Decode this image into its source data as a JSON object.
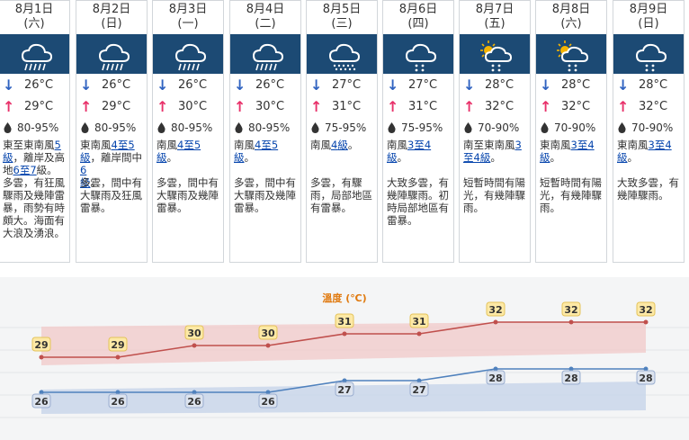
{
  "days": [
    {
      "date": "8月1日",
      "weekday": "(六)",
      "icon": "heavy-rain-icon",
      "low": "26°C",
      "high": "29°C",
      "humidity": "80-95%",
      "wind": [
        {
          "t": "東至東南風"
        },
        {
          "t": "5",
          "u": 1
        },
        {
          "t": "\n"
        },
        {
          "t": "級",
          "u": 1
        },
        {
          "t": "，離岸及高地"
        },
        {
          "t": "6至7",
          "u": 1
        },
        {
          "t": "級。"
        }
      ],
      "desc": "多雲，有狂風驟雨及幾陣雷暴，雨勢有時頗大。海面有大浪及湧浪。"
    },
    {
      "date": "8月2日",
      "weekday": "(日)",
      "icon": "heavy-rain-icon",
      "low": "26°C",
      "high": "29°C",
      "humidity": "80-95%",
      "wind": [
        {
          "t": "東南風"
        },
        {
          "t": "4至5",
          "u": 1
        },
        {
          "t": "\n"
        },
        {
          "t": "級",
          "u": 1
        },
        {
          "t": "，離岸間中"
        },
        {
          "t": "6",
          "u": 1
        },
        {
          "t": "\n"
        },
        {
          "t": "級",
          "u": 1
        },
        {
          "t": "。"
        }
      ],
      "desc": "多雲，間中有大驟雨及狂風雷暴。"
    },
    {
      "date": "8月3日",
      "weekday": "(一)",
      "icon": "heavy-rain-icon",
      "low": "26°C",
      "high": "30°C",
      "humidity": "80-95%",
      "wind": [
        {
          "t": "南風"
        },
        {
          "t": "4至5",
          "u": 1
        },
        {
          "t": "\n"
        },
        {
          "t": "級",
          "u": 1
        },
        {
          "t": "。"
        }
      ],
      "desc": "多雲，間中有大驟雨及幾陣雷暴。"
    },
    {
      "date": "8月4日",
      "weekday": "(二)",
      "icon": "heavy-rain-icon",
      "low": "26°C",
      "high": "30°C",
      "humidity": "80-95%",
      "wind": [
        {
          "t": "南風"
        },
        {
          "t": "4至5",
          "u": 1
        },
        {
          "t": "\n"
        },
        {
          "t": "級",
          "u": 1
        },
        {
          "t": "。"
        }
      ],
      "desc": "多雲，間中有大驟雨及幾陣雷暴。"
    },
    {
      "date": "8月5日",
      "weekday": "(三)",
      "icon": "rain-icon",
      "low": "27°C",
      "high": "31°C",
      "humidity": "75-95%",
      "wind": [
        {
          "t": "南風"
        },
        {
          "t": "4",
          "u": 1
        },
        {
          "t": "級",
          "u": 1
        },
        {
          "t": "。"
        }
      ],
      "desc": "多雲，有驟雨，局部地區有雷暴。"
    },
    {
      "date": "8月6日",
      "weekday": "(四)",
      "icon": "showers-icon",
      "low": "27°C",
      "high": "31°C",
      "humidity": "75-95%",
      "wind": [
        {
          "t": "南風"
        },
        {
          "t": "3至4",
          "u": 1
        },
        {
          "t": "\n"
        },
        {
          "t": "級",
          "u": 1
        },
        {
          "t": "。"
        }
      ],
      "desc": "大致多雲，有幾陣驟雨。初時局部地區有雷暴。"
    },
    {
      "date": "8月7日",
      "weekday": "(五)",
      "icon": "sun-showers-icon",
      "low": "28°C",
      "high": "32°C",
      "humidity": "70-90%",
      "wind": [
        {
          "t": "南至東南風"
        },
        {
          "t": "3",
          "u": 1
        },
        {
          "t": "\n"
        },
        {
          "t": "至4級",
          "u": 1
        },
        {
          "t": "。"
        }
      ],
      "desc": "短暫時間有陽光，有幾陣驟雨。"
    },
    {
      "date": "8月8日",
      "weekday": "(六)",
      "icon": "sun-showers-icon",
      "low": "28°C",
      "high": "32°C",
      "humidity": "70-90%",
      "wind": [
        {
          "t": "東南風"
        },
        {
          "t": "3至4",
          "u": 1
        },
        {
          "t": "\n"
        },
        {
          "t": "級",
          "u": 1
        },
        {
          "t": "。"
        }
      ],
      "desc": "短暫時間有陽光，有幾陣驟雨。"
    },
    {
      "date": "8月9日",
      "weekday": "(日)",
      "icon": "showers-icon",
      "low": "28°C",
      "high": "32°C",
      "humidity": "70-90%",
      "wind": [
        {
          "t": "東南風"
        },
        {
          "t": "3至4",
          "u": 1
        },
        {
          "t": "\n"
        },
        {
          "t": "級",
          "u": 1
        },
        {
          "t": "。"
        }
      ],
      "desc": "大致多雲，有幾陣驟雨。"
    }
  ],
  "colors": {
    "header_band": "#1c4a74",
    "high_line": "#c0504d",
    "low_line": "#4f81bd",
    "high_band": "#f2c8c8",
    "low_band": "#c9d6ea",
    "label_fill": "#fde9a6",
    "accent_title": "#e07a10"
  },
  "chart_data": {
    "type": "line",
    "title": "溫度 (℃)",
    "categories": [
      "8月1日",
      "8月2日",
      "8月3日",
      "8月4日",
      "8月5日",
      "8月6日",
      "8月7日",
      "8月8日",
      "8月9日"
    ],
    "series": [
      {
        "values": [
          29,
          29,
          30,
          30,
          31,
          31,
          32,
          32,
          32
        ]
      },
      {
        "values": [
          26,
          26,
          26,
          26,
          27,
          27,
          28,
          28,
          28
        ]
      }
    ],
    "ylim": [
      25,
      34
    ],
    "grid": true,
    "legend": "none"
  }
}
